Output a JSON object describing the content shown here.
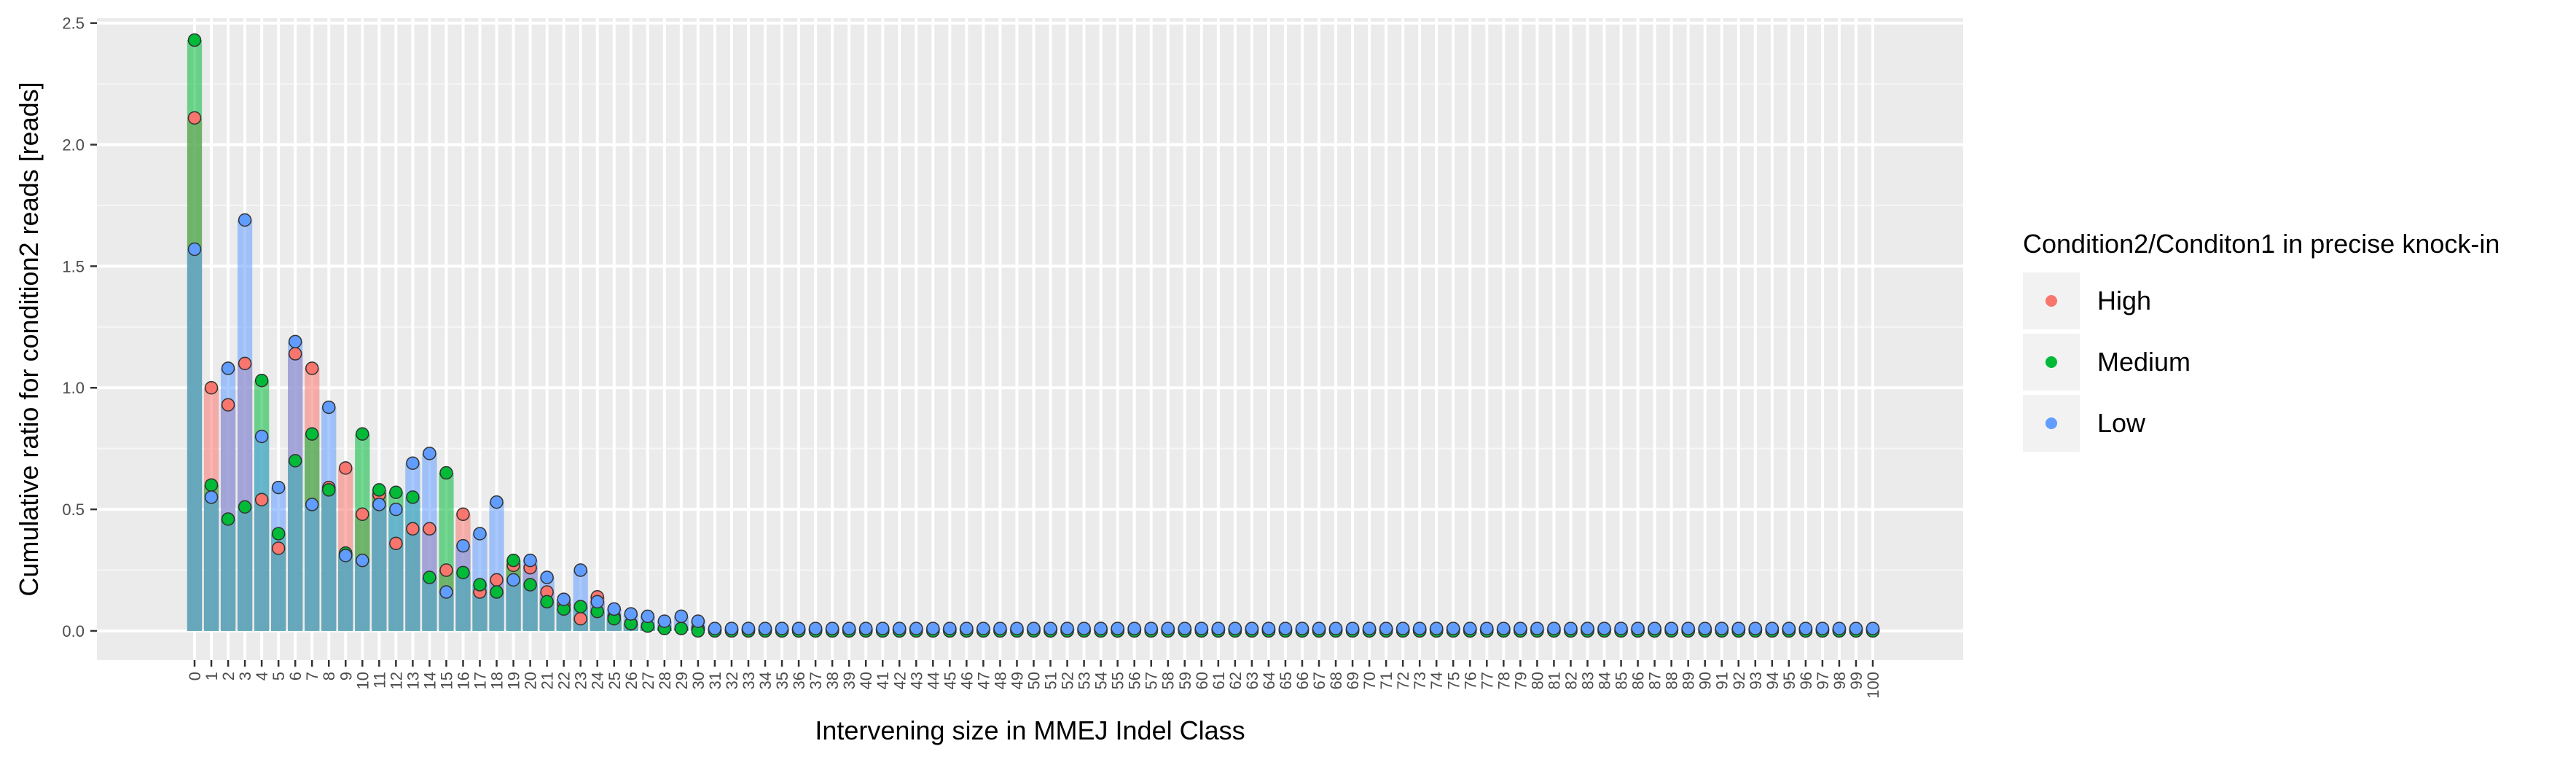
{
  "chart_data": {
    "type": "bar",
    "xlabel": "Intervening size in MMEJ Indel Class",
    "ylabel": "Cumulative ratio for condition2 reads [reads]",
    "ylim": [
      -0.12,
      2.52
    ],
    "yticks": [
      0.0,
      0.5,
      1.0,
      1.5,
      2.0,
      2.5
    ],
    "ytick_labels": [
      "0.0",
      "0.5",
      "1.0",
      "1.5",
      "2.0",
      "2.5"
    ],
    "x": [
      0,
      1,
      2,
      3,
      4,
      5,
      6,
      7,
      8,
      9,
      10,
      11,
      12,
      13,
      14,
      15,
      16,
      17,
      18,
      19,
      20,
      21,
      22,
      23,
      24,
      25,
      26,
      27,
      28,
      29,
      30,
      31,
      32,
      33,
      34,
      35,
      36,
      37,
      38,
      39,
      40,
      41,
      42,
      43,
      44,
      45,
      46,
      47,
      48,
      49,
      50,
      51,
      52,
      53,
      54,
      55,
      56,
      57,
      58,
      59,
      60,
      61,
      62,
      63,
      64,
      65,
      66,
      67,
      68,
      69,
      70,
      71,
      72,
      73,
      74,
      75,
      76,
      77,
      78,
      79,
      80,
      81,
      82,
      83,
      84,
      85,
      86,
      87,
      88,
      89,
      90,
      91,
      92,
      93,
      94,
      95,
      96,
      97,
      98,
      99,
      100
    ],
    "grid": true,
    "legend": {
      "title": "Condition2/Conditon1 in precise knock-in",
      "position": "right"
    },
    "series": [
      {
        "name": "High",
        "color": "#F8766D",
        "values": [
          2.11,
          1.0,
          0.93,
          1.1,
          0.54,
          0.34,
          1.14,
          1.08,
          0.59,
          0.67,
          0.48,
          0.56,
          0.36,
          0.42,
          0.42,
          0.25,
          0.48,
          0.16,
          0.21,
          0.27,
          0.26,
          0.16,
          0.11,
          0.05,
          0.14,
          0.06,
          0.03,
          0.02,
          0.01,
          0.01,
          0.01,
          0,
          0,
          0,
          0,
          0,
          0,
          0,
          0,
          0,
          0,
          0,
          0,
          0,
          0,
          0,
          0,
          0,
          0,
          0,
          0,
          0,
          0,
          0,
          0,
          0,
          0,
          0,
          0,
          0,
          0,
          0,
          0,
          0,
          0,
          0,
          0,
          0,
          0,
          0,
          0,
          0,
          0,
          0,
          0,
          0,
          0,
          0,
          0,
          0,
          0,
          0,
          0,
          0,
          0,
          0,
          0,
          0,
          0,
          0,
          0,
          0,
          0,
          0,
          0,
          0,
          0,
          0,
          0,
          0,
          0
        ]
      },
      {
        "name": "Medium",
        "color": "#00BA38",
        "values": [
          2.43,
          0.6,
          0.46,
          0.51,
          1.03,
          0.4,
          0.7,
          0.81,
          0.58,
          0.32,
          0.81,
          0.58,
          0.57,
          0.55,
          0.22,
          0.65,
          0.24,
          0.19,
          0.16,
          0.29,
          0.19,
          0.12,
          0.09,
          0.1,
          0.08,
          0.05,
          0.03,
          0.02,
          0.01,
          0.01,
          0.0,
          0,
          0,
          0,
          0,
          0,
          0,
          0,
          0,
          0,
          0,
          0,
          0,
          0,
          0,
          0,
          0,
          0,
          0,
          0,
          0,
          0,
          0,
          0,
          0,
          0,
          0,
          0,
          0,
          0,
          0,
          0,
          0,
          0,
          0,
          0,
          0,
          0,
          0,
          0,
          0,
          0,
          0,
          0,
          0,
          0,
          0,
          0,
          0,
          0,
          0,
          0,
          0,
          0,
          0,
          0,
          0,
          0,
          0,
          0,
          0,
          0,
          0,
          0,
          0,
          0,
          0,
          0,
          0,
          0,
          0
        ]
      },
      {
        "name": "Low",
        "color": "#619CFF",
        "values": [
          1.57,
          0.55,
          1.08,
          1.69,
          0.8,
          0.59,
          1.19,
          0.52,
          0.92,
          0.31,
          0.29,
          0.52,
          0.5,
          0.69,
          0.73,
          0.16,
          0.35,
          0.4,
          0.53,
          0.21,
          0.29,
          0.22,
          0.13,
          0.25,
          0.12,
          0.09,
          0.07,
          0.06,
          0.04,
          0.06,
          0.04,
          0.01,
          0.01,
          0.01,
          0.01,
          0.01,
          0.01,
          0.01,
          0.01,
          0.01,
          0.01,
          0.01,
          0.01,
          0.01,
          0.01,
          0.01,
          0.01,
          0.01,
          0.01,
          0.01,
          0.01,
          0.01,
          0.01,
          0.01,
          0.01,
          0.01,
          0.01,
          0.01,
          0.01,
          0.01,
          0.01,
          0.01,
          0.01,
          0.01,
          0.01,
          0.01,
          0.01,
          0.01,
          0.01,
          0.01,
          0.01,
          0.01,
          0.01,
          0.01,
          0.01,
          0.01,
          0.01,
          0.01,
          0.01,
          0.01,
          0.01,
          0.01,
          0.01,
          0.01,
          0.01,
          0.01,
          0.01,
          0.01,
          0.01,
          0.01,
          0.01,
          0.01,
          0.01,
          0.01,
          0.01,
          0.01,
          0.01,
          0.01,
          0.01,
          0.01,
          0.01
        ]
      }
    ]
  }
}
